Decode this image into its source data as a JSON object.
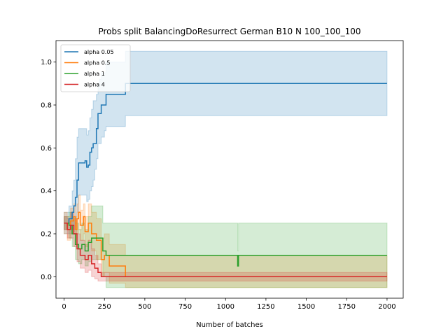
{
  "chart_data": {
    "type": "line",
    "title": "Probs split BalancingDoResurrect German B10 N 100_100_100",
    "xlabel": "Number of batches",
    "ylabel": "",
    "xlim": [
      -50,
      2100
    ],
    "ylim": [
      -0.1,
      1.1
    ],
    "x_ticks": [
      0,
      250,
      500,
      750,
      1000,
      1250,
      1500,
      1750,
      2000
    ],
    "y_ticks": [
      0.0,
      0.2,
      0.4,
      0.6,
      0.8,
      1.0
    ],
    "grid": false,
    "legend_position": "top-left",
    "series": [
      {
        "name": "alpha 0.05",
        "color": "#1f77b4",
        "x": [
          0,
          30,
          50,
          60,
          70,
          80,
          90,
          130,
          140,
          150,
          160,
          170,
          180,
          190,
          200,
          210,
          220,
          230,
          250,
          260,
          380,
          2000
        ],
        "y": [
          0.25,
          0.27,
          0.3,
          0.33,
          0.37,
          0.45,
          0.53,
          0.54,
          0.51,
          0.52,
          0.58,
          0.6,
          0.62,
          0.62,
          0.69,
          0.76,
          0.76,
          0.8,
          0.8,
          0.85,
          0.9,
          0.9
        ],
        "lower": [
          0.2,
          0.2,
          0.22,
          0.22,
          0.25,
          0.3,
          0.38,
          0.38,
          0.35,
          0.36,
          0.4,
          0.42,
          0.45,
          0.5,
          0.55,
          0.62,
          0.62,
          0.65,
          0.68,
          0.7,
          0.75,
          0.75
        ],
        "upper": [
          0.3,
          0.33,
          0.4,
          0.45,
          0.55,
          0.65,
          0.69,
          0.69,
          0.66,
          0.68,
          0.74,
          0.78,
          0.82,
          0.82,
          0.85,
          0.9,
          0.92,
          0.95,
          0.95,
          1.0,
          1.05,
          1.05
        ]
      },
      {
        "name": "alpha 0.5",
        "color": "#ff7f0e",
        "x": [
          0,
          20,
          40,
          60,
          70,
          80,
          90,
          100,
          120,
          130,
          150,
          170,
          200,
          230,
          250,
          280,
          380,
          2000
        ],
        "y": [
          0.25,
          0.22,
          0.26,
          0.28,
          0.22,
          0.27,
          0.3,
          0.24,
          0.28,
          0.21,
          0.25,
          0.2,
          0.17,
          0.08,
          0.1,
          0.05,
          0.0,
          0.0
        ],
        "lower": [
          0.2,
          0.17,
          0.2,
          0.21,
          0.16,
          0.2,
          0.22,
          0.17,
          0.2,
          0.14,
          0.17,
          0.12,
          0.08,
          0.0,
          0.02,
          -0.03,
          -0.05,
          -0.05
        ],
        "upper": [
          0.3,
          0.28,
          0.32,
          0.34,
          0.28,
          0.34,
          0.38,
          0.31,
          0.34,
          0.28,
          0.34,
          0.3,
          0.27,
          0.18,
          0.2,
          0.15,
          0.1,
          0.1
        ]
      },
      {
        "name": "alpha 1",
        "color": "#2ca02c",
        "x": [
          0,
          30,
          50,
          70,
          90,
          110,
          130,
          150,
          170,
          200,
          240,
          260,
          1070,
          1075,
          1080,
          2000
        ],
        "y": [
          0.25,
          0.24,
          0.2,
          0.15,
          0.13,
          0.15,
          0.12,
          0.16,
          0.18,
          0.18,
          0.12,
          0.1,
          0.1,
          0.05,
          0.1,
          0.1
        ],
        "lower": [
          0.22,
          0.18,
          0.14,
          0.08,
          0.06,
          0.08,
          0.05,
          0.07,
          0.08,
          0.08,
          0.0,
          -0.05,
          -0.05,
          -0.05,
          -0.05,
          -0.05
        ],
        "upper": [
          0.28,
          0.3,
          0.28,
          0.25,
          0.22,
          0.25,
          0.22,
          0.28,
          0.33,
          0.33,
          0.25,
          0.25,
          0.25,
          0.12,
          0.25,
          0.25
        ]
      },
      {
        "name": "alpha 4",
        "color": "#d62728",
        "x": [
          0,
          20,
          40,
          60,
          80,
          100,
          130,
          150,
          170,
          190,
          210,
          230,
          2000
        ],
        "y": [
          0.25,
          0.22,
          0.24,
          0.2,
          0.13,
          0.1,
          0.08,
          0.1,
          0.06,
          0.04,
          0.02,
          0.0,
          0.0
        ],
        "lower": [
          0.22,
          0.18,
          0.18,
          0.14,
          0.07,
          0.04,
          0.02,
          0.03,
          0.0,
          -0.01,
          -0.02,
          -0.02,
          -0.02
        ],
        "upper": [
          0.28,
          0.27,
          0.3,
          0.27,
          0.2,
          0.17,
          0.15,
          0.17,
          0.13,
          0.1,
          0.06,
          0.02,
          0.0
        ]
      }
    ]
  }
}
